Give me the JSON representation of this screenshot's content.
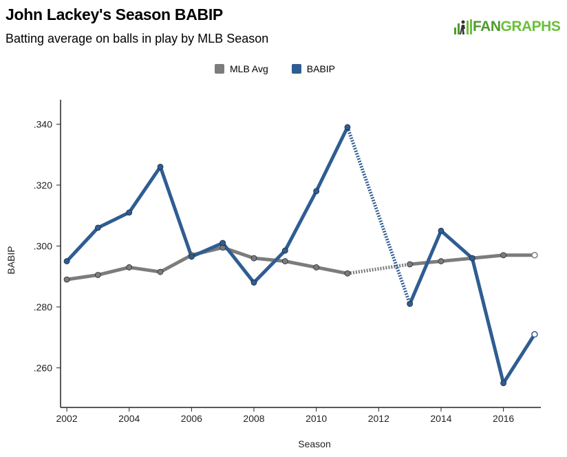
{
  "header": {
    "title": "John Lackey's Season BABIP",
    "subtitle": "Batting average on balls in play by MLB Season"
  },
  "logo": {
    "text_part1": "FAN",
    "text_part2": "GRAPHS",
    "icon": "fangraphs-logo-icon"
  },
  "colors": {
    "mlb": "#7c7c7c",
    "babip": "#2f5d92",
    "axis": "#222222"
  },
  "chart_data": {
    "type": "line",
    "xlabel": "Season",
    "ylabel": "BABIP",
    "xlim": [
      2001.8,
      2017.2
    ],
    "ylim": [
      0.247,
      0.348
    ],
    "x_ticks": [
      2002,
      2004,
      2006,
      2008,
      2010,
      2012,
      2014,
      2016
    ],
    "y_ticks": [
      0.26,
      0.28,
      0.3,
      0.32,
      0.34
    ],
    "y_tick_labels": [
      ".260",
      ".280",
      ".300",
      ".320",
      ".340"
    ],
    "legend_position": "top-center",
    "grid": false,
    "series": [
      {
        "name": "MLB Avg",
        "color": "#7c7c7c",
        "points": [
          {
            "x": 2002,
            "y": 0.289
          },
          {
            "x": 2003,
            "y": 0.2905
          },
          {
            "x": 2004,
            "y": 0.293
          },
          {
            "x": 2005,
            "y": 0.2915
          },
          {
            "x": 2006,
            "y": 0.297
          },
          {
            "x": 2007,
            "y": 0.2995
          },
          {
            "x": 2008,
            "y": 0.296
          },
          {
            "x": 2009,
            "y": 0.295
          },
          {
            "x": 2010,
            "y": 0.293
          },
          {
            "x": 2011,
            "y": 0.291
          },
          {
            "x": 2013,
            "y": 0.294
          },
          {
            "x": 2014,
            "y": 0.295
          },
          {
            "x": 2015,
            "y": 0.296
          },
          {
            "x": 2016,
            "y": 0.297
          },
          {
            "x": 2017,
            "y": 0.297
          }
        ],
        "last_point_open": true
      },
      {
        "name": "BABIP",
        "color": "#2f5d92",
        "points": [
          {
            "x": 2002,
            "y": 0.295
          },
          {
            "x": 2003,
            "y": 0.306
          },
          {
            "x": 2004,
            "y": 0.311
          },
          {
            "x": 2005,
            "y": 0.326
          },
          {
            "x": 2006,
            "y": 0.2965
          },
          {
            "x": 2007,
            "y": 0.301
          },
          {
            "x": 2008,
            "y": 0.288
          },
          {
            "x": 2009,
            "y": 0.2985
          },
          {
            "x": 2010,
            "y": 0.318
          },
          {
            "x": 2011,
            "y": 0.339
          },
          {
            "x": 2013,
            "y": 0.281
          },
          {
            "x": 2014,
            "y": 0.305
          },
          {
            "x": 2015,
            "y": 0.296
          },
          {
            "x": 2016,
            "y": 0.255
          },
          {
            "x": 2017,
            "y": 0.271
          }
        ],
        "last_point_open": true
      }
    ]
  }
}
